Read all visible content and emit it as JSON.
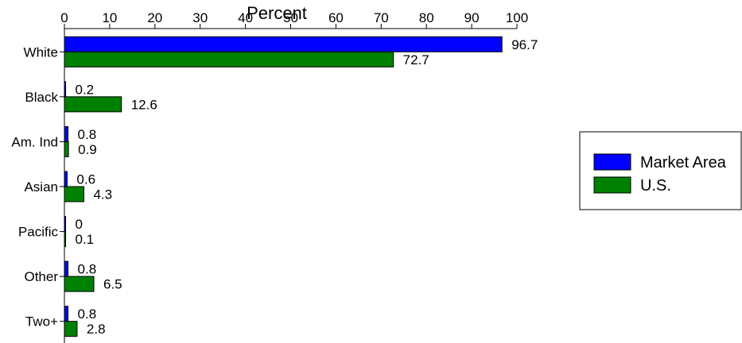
{
  "chart_data": {
    "type": "bar",
    "orientation": "horizontal",
    "xlabel": "Percent",
    "xlim": [
      0,
      100
    ],
    "xticks": [
      0,
      10,
      20,
      30,
      40,
      50,
      60,
      70,
      80,
      90,
      100
    ],
    "categories": [
      "White",
      "Black",
      "Am. Ind",
      "Asian",
      "Pacific",
      "Other",
      "Two+"
    ],
    "series": [
      {
        "name": "Market Area",
        "color": "#0000ff",
        "values": [
          96.7,
          0.2,
          0.8,
          0.6,
          0,
          0.8,
          0.8
        ]
      },
      {
        "name": "U.S.",
        "color": "#008000",
        "values": [
          72.7,
          12.6,
          0.9,
          4.3,
          0.1,
          6.5,
          2.8
        ]
      }
    ],
    "data_labels": [
      [
        "96.7",
        "0.2",
        "0.8",
        "0.6",
        "0",
        "0.8",
        "0.8"
      ],
      [
        "72.7",
        "12.6",
        "0.9",
        "4.3",
        "0.1",
        "6.5",
        "2.8"
      ]
    ],
    "legend": {
      "position": "right"
    },
    "grid": false
  }
}
